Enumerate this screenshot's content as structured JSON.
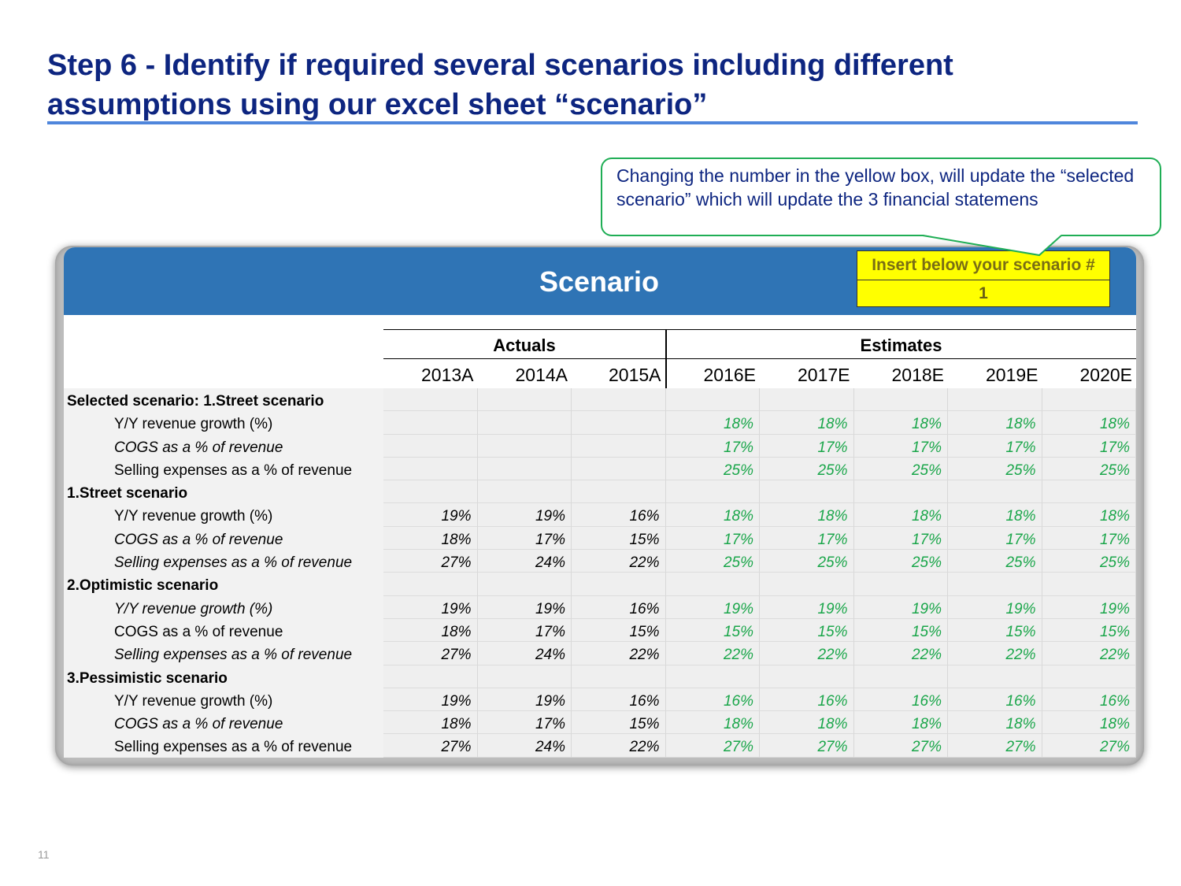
{
  "slide": {
    "title": "Step 6 - Identify if required several scenarios including different assumptions using our excel sheet “scenario”",
    "page_number": "11"
  },
  "callout": {
    "text": "Changing the number in the yellow box,  will update the “selected scenario” which will update the 3 financial statemens"
  },
  "sheet": {
    "title": "Scenario",
    "scenario_box": {
      "label": "Insert below your scenario #",
      "value": "1"
    },
    "group_headers": {
      "actuals": "Actuals",
      "estimates": "Estimates"
    },
    "years": [
      "2013A",
      "2014A",
      "2015A",
      "2016E",
      "2017E",
      "2018E",
      "2019E",
      "2020E"
    ],
    "colors": {
      "header_band": "#2f74b5",
      "scenario_box": "#ffff00",
      "estimate_text": "#1aa64a",
      "title_text": "#0d2580",
      "callout_border": "#1fae55"
    },
    "rows": [
      {
        "label": "Selected scenario: 1.Street scenario",
        "kind": "section",
        "values": [
          "",
          "",
          "",
          "",
          "",
          "",
          "",
          ""
        ]
      },
      {
        "label": "Y/Y revenue growth (%)",
        "kind": "sub",
        "values": [
          "",
          "",
          "",
          "18%",
          "18%",
          "18%",
          "18%",
          "18%"
        ]
      },
      {
        "label": "COGS as a % of revenue",
        "kind": "sub-italic",
        "values": [
          "",
          "",
          "",
          "17%",
          "17%",
          "17%",
          "17%",
          "17%"
        ]
      },
      {
        "label": "Selling expenses as a % of revenue",
        "kind": "sub",
        "values": [
          "",
          "",
          "",
          "25%",
          "25%",
          "25%",
          "25%",
          "25%"
        ]
      },
      {
        "label": "1.Street scenario",
        "kind": "section",
        "values": [
          "",
          "",
          "",
          "",
          "",
          "",
          "",
          ""
        ]
      },
      {
        "label": "Y/Y revenue growth (%)",
        "kind": "sub",
        "values": [
          "19%",
          "19%",
          "16%",
          "18%",
          "18%",
          "18%",
          "18%",
          "18%"
        ]
      },
      {
        "label": "COGS as a % of revenue",
        "kind": "sub-italic",
        "values": [
          "18%",
          "17%",
          "15%",
          "17%",
          "17%",
          "17%",
          "17%",
          "17%"
        ]
      },
      {
        "label": "Selling expenses as a % of revenue",
        "kind": "sub-italic",
        "values": [
          "27%",
          "24%",
          "22%",
          "25%",
          "25%",
          "25%",
          "25%",
          "25%"
        ]
      },
      {
        "label": "2.Optimistic scenario",
        "kind": "section",
        "values": [
          "",
          "",
          "",
          "",
          "",
          "",
          "",
          ""
        ]
      },
      {
        "label": "Y/Y revenue growth (%)",
        "kind": "sub-italic",
        "values": [
          "19%",
          "19%",
          "16%",
          "19%",
          "19%",
          "19%",
          "19%",
          "19%"
        ]
      },
      {
        "label": "COGS as a % of revenue",
        "kind": "sub",
        "values": [
          "18%",
          "17%",
          "15%",
          "15%",
          "15%",
          "15%",
          "15%",
          "15%"
        ]
      },
      {
        "label": "Selling expenses as a % of revenue",
        "kind": "sub-italic",
        "values": [
          "27%",
          "24%",
          "22%",
          "22%",
          "22%",
          "22%",
          "22%",
          "22%"
        ]
      },
      {
        "label": "3.Pessimistic scenario",
        "kind": "section",
        "values": [
          "",
          "",
          "",
          "",
          "",
          "",
          "",
          ""
        ]
      },
      {
        "label": "Y/Y revenue growth (%)",
        "kind": "sub",
        "values": [
          "19%",
          "19%",
          "16%",
          "16%",
          "16%",
          "16%",
          "16%",
          "16%"
        ]
      },
      {
        "label": "COGS as a % of revenue",
        "kind": "sub-italic",
        "values": [
          "18%",
          "17%",
          "15%",
          "18%",
          "18%",
          "18%",
          "18%",
          "18%"
        ]
      },
      {
        "label": "Selling expenses as a % of revenue",
        "kind": "sub",
        "values": [
          "27%",
          "24%",
          "22%",
          "27%",
          "27%",
          "27%",
          "27%",
          "27%"
        ]
      }
    ]
  }
}
